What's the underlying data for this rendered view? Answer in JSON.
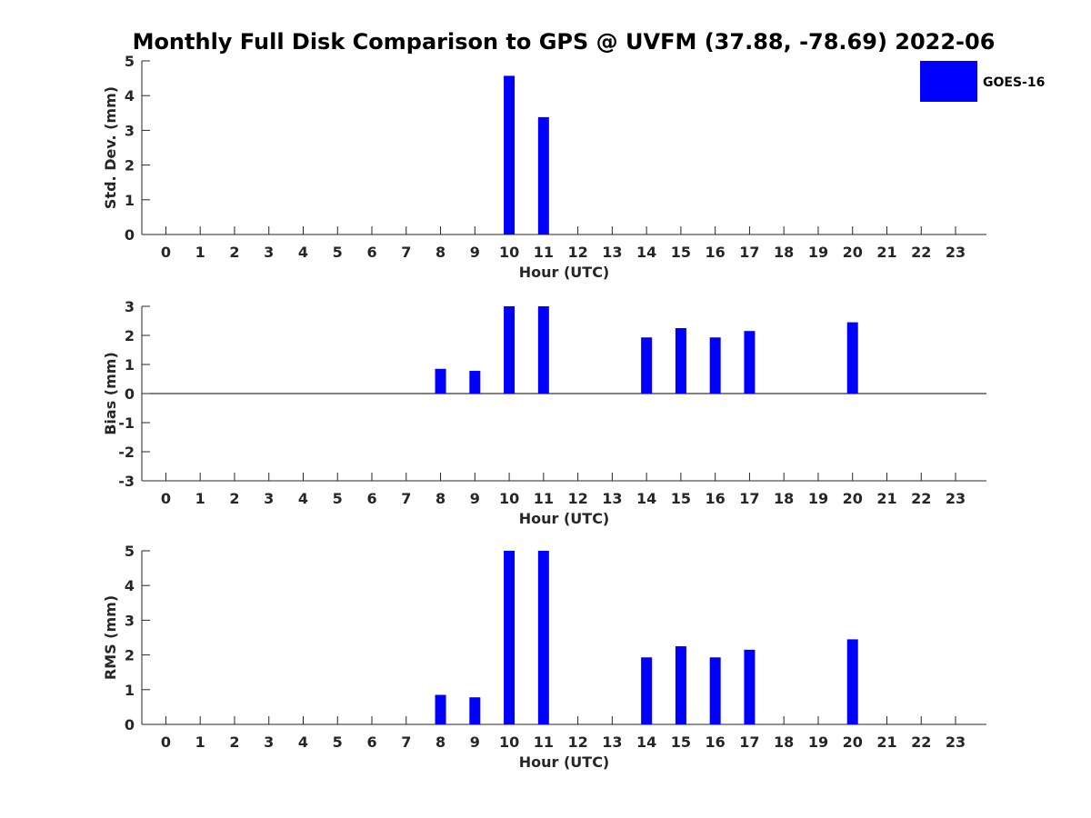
{
  "figure": {
    "title": "Monthly Full Disk Comparison to GPS @ UVFM (37.88, -78.69) 2022-06"
  },
  "legend": {
    "label": "GOES-16",
    "color": "#0000ff",
    "placement": "top-right"
  },
  "chart_data": [
    {
      "type": "bar",
      "title": "",
      "xlabel": "Hour (UTC)",
      "ylabel": "Std. Dev. (mm)",
      "xlim": [
        -0.7,
        23.9
      ],
      "ylim": [
        0,
        5
      ],
      "yticks": [
        0,
        1,
        2,
        3,
        4,
        5
      ],
      "categories": [
        0,
        1,
        2,
        3,
        4,
        5,
        6,
        7,
        8,
        9,
        10,
        11,
        12,
        13,
        14,
        15,
        16,
        17,
        18,
        19,
        20,
        21,
        22,
        23
      ],
      "series": [
        {
          "name": "GOES-16",
          "color": "#0000ff",
          "values": [
            null,
            null,
            null,
            null,
            null,
            null,
            null,
            null,
            null,
            null,
            4.57,
            3.38,
            null,
            null,
            null,
            null,
            null,
            null,
            null,
            null,
            null,
            null,
            null,
            null
          ]
        }
      ],
      "grid": false
    },
    {
      "type": "bar",
      "title": "",
      "xlabel": "Hour (UTC)",
      "ylabel": "Bias (mm)",
      "xlim": [
        -0.7,
        23.9
      ],
      "ylim": [
        -3,
        3
      ],
      "yticks": [
        -3,
        -2,
        -1,
        0,
        1,
        2,
        3
      ],
      "zero_line": true,
      "categories": [
        0,
        1,
        2,
        3,
        4,
        5,
        6,
        7,
        8,
        9,
        10,
        11,
        12,
        13,
        14,
        15,
        16,
        17,
        18,
        19,
        20,
        21,
        22,
        23
      ],
      "series": [
        {
          "name": "GOES-16",
          "color": "#0000ff",
          "values": [
            null,
            null,
            null,
            null,
            null,
            null,
            null,
            null,
            0.85,
            0.78,
            3.0,
            3.0,
            null,
            null,
            1.93,
            2.25,
            1.93,
            2.15,
            null,
            null,
            2.45,
            null,
            null,
            null
          ]
        }
      ],
      "grid": false
    },
    {
      "type": "bar",
      "title": "",
      "xlabel": "Hour (UTC)",
      "ylabel": "RMS (mm)",
      "xlim": [
        -0.7,
        23.9
      ],
      "ylim": [
        0,
        5
      ],
      "yticks": [
        0,
        1,
        2,
        3,
        4,
        5
      ],
      "categories": [
        0,
        1,
        2,
        3,
        4,
        5,
        6,
        7,
        8,
        9,
        10,
        11,
        12,
        13,
        14,
        15,
        16,
        17,
        18,
        19,
        20,
        21,
        22,
        23
      ],
      "series": [
        {
          "name": "GOES-16",
          "color": "#0000ff",
          "values": [
            null,
            null,
            null,
            null,
            null,
            null,
            null,
            null,
            0.85,
            0.78,
            5.0,
            5.0,
            null,
            null,
            1.93,
            2.25,
            1.93,
            2.15,
            null,
            null,
            2.45,
            null,
            null,
            null
          ]
        }
      ],
      "grid": false
    }
  ]
}
